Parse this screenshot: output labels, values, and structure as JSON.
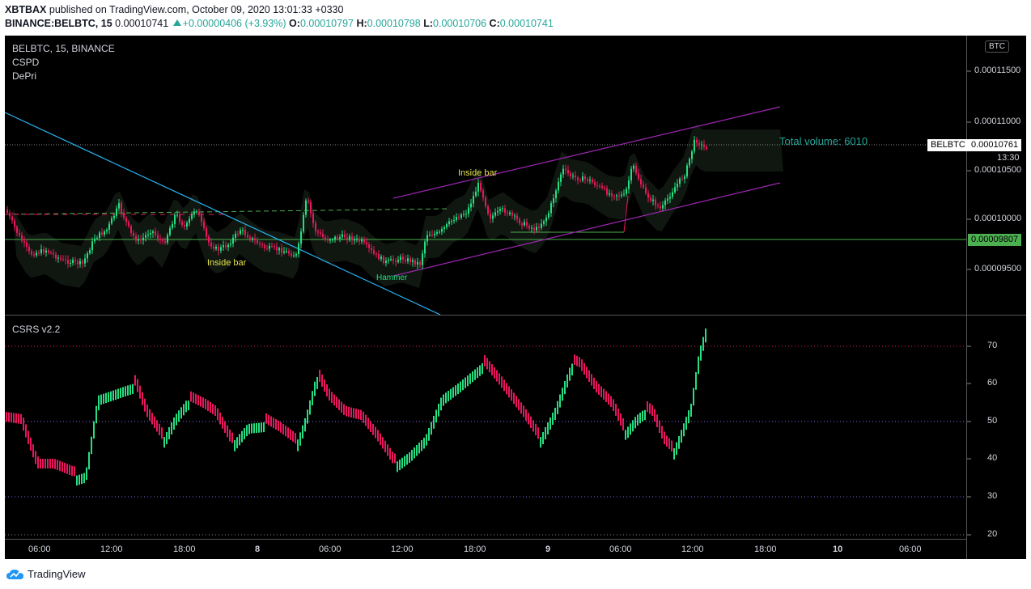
{
  "header": {
    "publisher": "XBTBAX",
    "published_text": "published on TradingView.com, October 09, 2020 13:01:33 +0330",
    "symbol": "BINANCE:BELBTC, 15",
    "last": "0.00010741",
    "change": "+0.00000406 (+3.93%)",
    "o_label": "O:",
    "o_value": "0.00010797",
    "h_label": "H:",
    "h_value": "0.00010798",
    "l_label": "L:",
    "l_value": "0.00010706",
    "c_label": "C:",
    "c_value": "0.00010741"
  },
  "legend": {
    "title": "BELBTC, 15, BINANCE",
    "ind1": "CSPD",
    "ind2": "DePri",
    "osc": "CSRS v2.2"
  },
  "currency_button": "BTC",
  "annotations": {
    "inside_bar_1": "Inside bar",
    "inside_bar_2": "Inside bar",
    "hammer": "Hammer",
    "total_volume": "Total volume: 6010"
  },
  "price_axis": {
    "labels": [
      "0.00011500",
      "0.00011000",
      "0.00010500",
      "0.00010000",
      "0.00009500"
    ],
    "current_symbol": "BELBTC",
    "current_value": "0.00010761",
    "countdown": "13:30",
    "green_line_value": "0.00009807"
  },
  "osc_axis": {
    "labels": [
      "70",
      "60",
      "50",
      "40",
      "30",
      "20"
    ]
  },
  "time_axis": {
    "labels": [
      "06:00",
      "12:00",
      "18:00",
      "8",
      "06:00",
      "12:00",
      "18:00",
      "9",
      "06:00",
      "12:00",
      "18:00",
      "10",
      "06:00"
    ]
  },
  "footer": {
    "brand": "TradingView"
  },
  "colors": {
    "up": "#26de81",
    "down": "#e8175d",
    "bg": "#000000",
    "teal": "#26a69a",
    "channel": "#9c27b0",
    "trend": "#29b6f6"
  }
}
